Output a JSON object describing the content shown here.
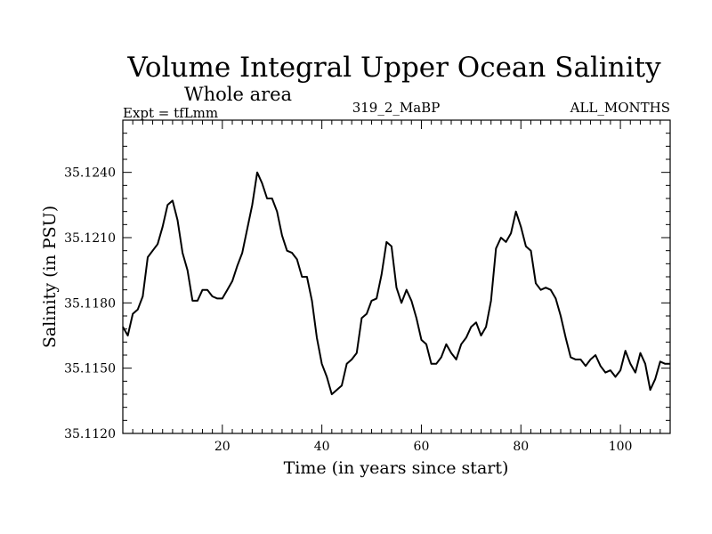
{
  "chart_data": {
    "type": "line",
    "title": "Volume Integral Upper Ocean Salinity",
    "subtitle": "Whole area",
    "experiment": "Expt = tfLmm",
    "run_id": "319_2_MaBP",
    "period": "ALL_MONTHS",
    "xlabel": "Time (in years since start)",
    "ylabel": "Salinity (in PSU)",
    "xlim": [
      0,
      110
    ],
    "ylim": [
      35.112,
      35.1264
    ],
    "x_ticks": [
      20,
      40,
      60,
      80,
      100
    ],
    "x_tick_labels": [
      "20",
      "40",
      "60",
      "80",
      "100"
    ],
    "y_ticks": [
      35.112,
      35.115,
      35.118,
      35.121,
      35.124
    ],
    "y_tick_labels": [
      "35.1120",
      "35.1150",
      "35.1180",
      "35.1210",
      "35.1240"
    ],
    "grid": false,
    "series": [
      {
        "name": "salinity",
        "color": "#000000",
        "x": [
          0,
          1,
          2,
          3,
          4,
          5,
          6,
          7,
          8,
          9,
          10,
          11,
          12,
          13,
          14,
          15,
          16,
          17,
          18,
          19,
          20,
          21,
          22,
          23,
          24,
          25,
          26,
          27,
          28,
          29,
          30,
          31,
          32,
          33,
          34,
          35,
          36,
          37,
          38,
          39,
          40,
          41,
          42,
          43,
          44,
          45,
          46,
          47,
          48,
          49,
          50,
          51,
          52,
          53,
          54,
          55,
          56,
          57,
          58,
          59,
          60,
          61,
          62,
          63,
          64,
          65,
          66,
          67,
          68,
          69,
          70,
          71,
          72,
          73,
          74,
          75,
          76,
          77,
          78,
          79,
          80,
          81,
          82,
          83,
          84,
          85,
          86,
          87,
          88,
          89,
          90,
          91,
          92,
          93,
          94,
          95,
          96,
          97,
          98,
          99,
          100,
          101,
          102,
          103,
          104,
          105,
          106,
          107,
          108,
          109,
          110
        ],
        "values": [
          35.1169,
          35.1165,
          35.1175,
          35.1177,
          35.1183,
          35.1201,
          35.1204,
          35.1207,
          35.1215,
          35.1225,
          35.1227,
          35.1218,
          35.1203,
          35.1195,
          35.1181,
          35.1181,
          35.1186,
          35.1186,
          35.1183,
          35.1182,
          35.1182,
          35.1186,
          35.119,
          35.1197,
          35.1203,
          35.1214,
          35.1225,
          35.124,
          35.1235,
          35.1228,
          35.1228,
          35.1222,
          35.1211,
          35.1204,
          35.1203,
          35.12,
          35.1192,
          35.1192,
          35.1181,
          35.1164,
          35.1152,
          35.1146,
          35.1138,
          35.114,
          35.1142,
          35.1152,
          35.1154,
          35.1157,
          35.1173,
          35.1175,
          35.1181,
          35.1182,
          35.1193,
          35.1208,
          35.1206,
          35.1187,
          35.118,
          35.1186,
          35.1181,
          35.1173,
          35.1163,
          35.1161,
          35.1152,
          35.1152,
          35.1155,
          35.1161,
          35.1157,
          35.1154,
          35.1161,
          35.1164,
          35.1169,
          35.1171,
          35.1165,
          35.1169,
          35.1181,
          35.1205,
          35.121,
          35.1208,
          35.1212,
          35.1222,
          35.1215,
          35.1206,
          35.1204,
          35.1189,
          35.1186,
          35.1187,
          35.1186,
          35.1182,
          35.1174,
          35.1164,
          35.1155,
          35.1154,
          35.1154,
          35.1151,
          35.1154,
          35.1156,
          35.1151,
          35.1148,
          35.1149,
          35.1146,
          35.1149,
          35.1158,
          35.1152,
          35.1148,
          35.1157,
          35.1152,
          35.114,
          35.1145,
          35.1153,
          35.1152,
          35.1152
        ]
      }
    ]
  }
}
